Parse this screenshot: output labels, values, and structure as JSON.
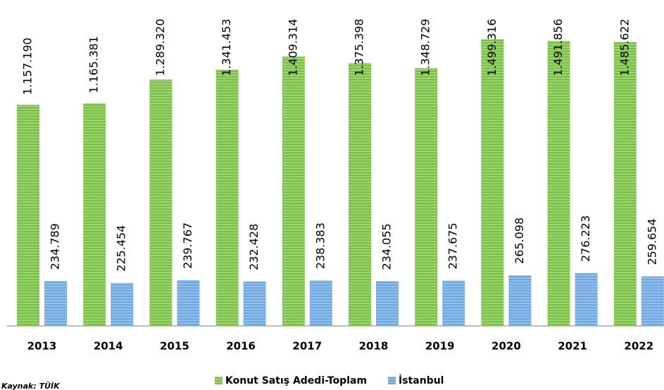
{
  "chart_data": {
    "type": "bar",
    "categories": [
      "2013",
      "2014",
      "2015",
      "2016",
      "2017",
      "2018",
      "2019",
      "2020",
      "2021",
      "2022"
    ],
    "series": [
      {
        "name": "Konut Satış Adedi-Toplam",
        "color": "#7ac143",
        "values": [
          1157190,
          1165381,
          1289320,
          1341453,
          1409314,
          1375398,
          1348729,
          1499316,
          1491856,
          1485622
        ],
        "value_labels": [
          "1.157.190",
          "1.165.381",
          "1.289.320",
          "1.341.453",
          "1.409.314",
          "1.375.398",
          "1.348.729",
          "1.499.316",
          "1.491.856",
          "1.485.622"
        ]
      },
      {
        "name": "İstanbul",
        "color": "#6ea6df",
        "values": [
          234789,
          225454,
          239767,
          232428,
          238383,
          234055,
          237675,
          265098,
          276223,
          259654
        ],
        "value_labels": [
          "234.789",
          "225.454",
          "239.767",
          "232.428",
          "238.383",
          "234.055",
          "237.675",
          "265.098",
          "276.223",
          "259.654"
        ]
      }
    ],
    "source": "Kaynak: TÜİK",
    "legend": "bottom"
  }
}
